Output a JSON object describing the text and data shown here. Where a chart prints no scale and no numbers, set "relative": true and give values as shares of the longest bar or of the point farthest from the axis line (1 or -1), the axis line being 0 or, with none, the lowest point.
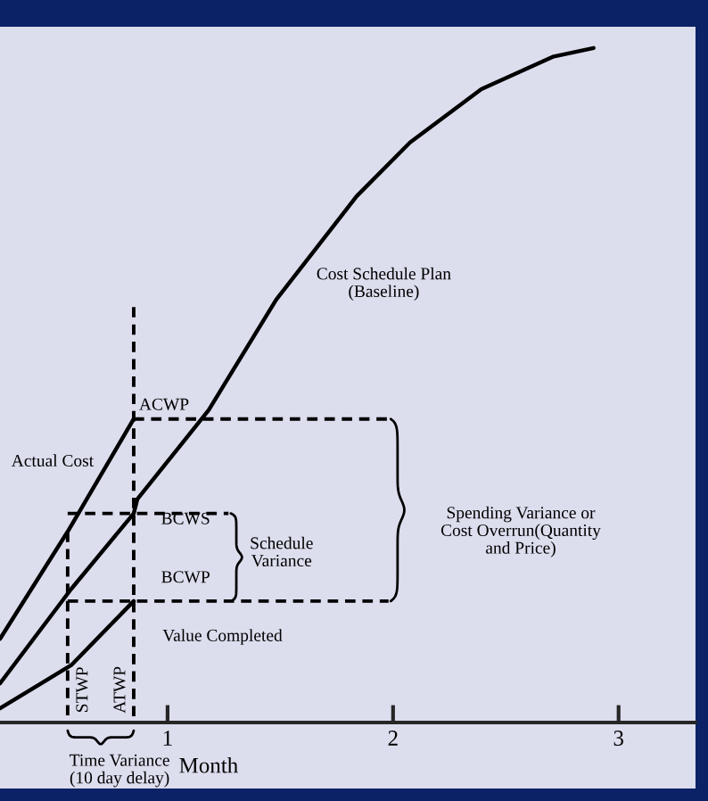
{
  "chart_data": {
    "type": "line",
    "relative": true,
    "xlabel": "Month",
    "xlim": [
      0.257,
      3.34
    ],
    "xticks": [
      1,
      2,
      3
    ],
    "grid": false,
    "legend": false,
    "marker": "none",
    "series": [
      {
        "color": "#000000",
        "line_style": "solid",
        "x": [
          0.257,
          0.573,
          0.85,
          0.866,
          1.182,
          1.482,
          1.838,
          2.075,
          2.391,
          2.708,
          2.889
        ],
        "values": [
          0.058,
          0.198,
          0.31,
          0.331,
          0.463,
          0.627,
          0.78,
          0.86,
          0.939,
          0.987,
          1.0
        ]
      },
      {
        "color": "#000000",
        "line_style": "solid",
        "x": [
          0.257,
          0.557,
          0.85
        ],
        "values": [
          0.124,
          0.283,
          0.45
        ]
      },
      {
        "color": "#000000",
        "line_style": "solid",
        "x": [
          0.257,
          0.573,
          0.85
        ],
        "values": [
          0.021,
          0.085,
          0.18
        ]
      },
      {
        "color": "#000000",
        "line_style": "dashed",
        "x": [
          0.85,
          0.85
        ],
        "values": [
          0.616,
          0.0
        ]
      },
      {
        "color": "#000000",
        "line_style": "dashed",
        "x": [
          0.557,
          0.557
        ],
        "values": [
          0.283,
          0.0
        ]
      },
      {
        "color": "#000000",
        "line_style": "dashed",
        "x": [
          0.85,
          1.98
        ],
        "values": [
          0.45,
          0.45
        ]
      },
      {
        "color": "#000000",
        "line_style": "dashed",
        "x": [
          0.557,
          1.27
        ],
        "values": [
          0.31,
          0.31
        ]
      },
      {
        "color": "#000000",
        "line_style": "dashed",
        "x": [
          0.557,
          1.98
        ],
        "values": [
          0.18,
          0.18
        ]
      }
    ],
    "annotations": [
      "Cost Schedule Plan\n(Baseline)",
      "Actual Cost",
      "ACWP",
      "BCWS",
      "BCWP",
      "Schedule\nVariance",
      "Spending Variance or\nCost Overrun(Quantity\nand Price)",
      "Value Completed",
      "STWP",
      "ATWP",
      "Time Variance\n(10 day delay)"
    ]
  }
}
